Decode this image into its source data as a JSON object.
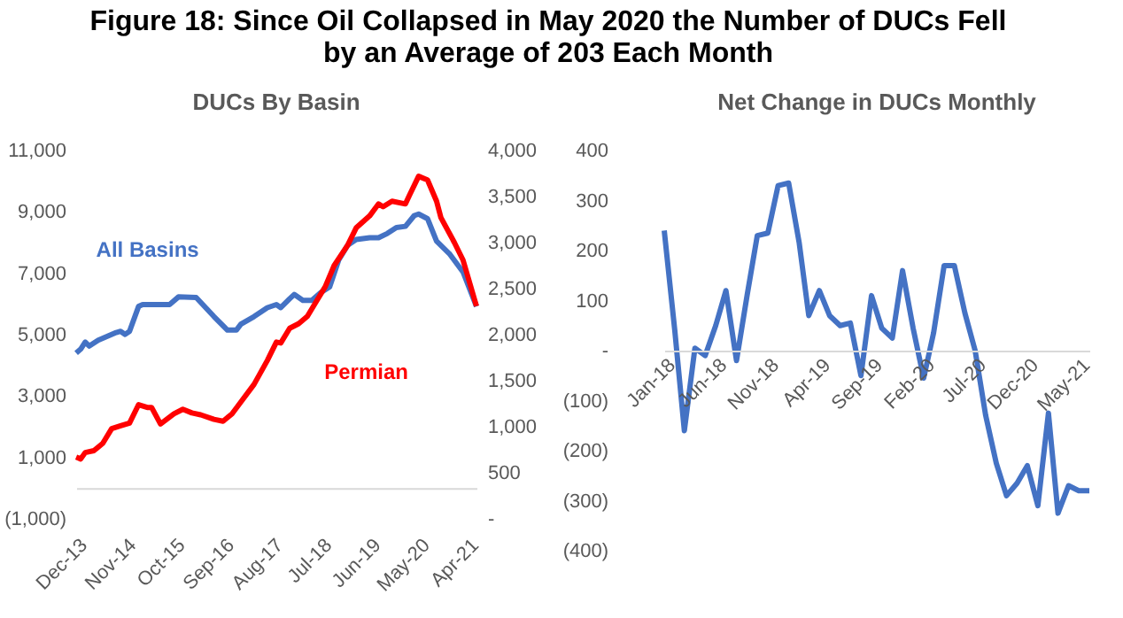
{
  "chart_data": [
    {
      "type": "line",
      "title": "Figure 18: Since Oil Collapsed in May 2020 the Number of DUCs Fell by an Average of 203 Each Month",
      "subtitle": "DUCs By Basin",
      "legend": false,
      "grid": false,
      "marker": "none",
      "line_style": "solid",
      "xlim": [
        "2013-12",
        "2021-06"
      ],
      "xticks": [
        {
          "value": "2013-12",
          "label": "Dec-13"
        },
        {
          "value": "2014-11",
          "label": "Nov-14"
        },
        {
          "value": "2015-10",
          "label": "Oct-15"
        },
        {
          "value": "2016-09",
          "label": "Sep-16"
        },
        {
          "value": "2017-08",
          "label": "Aug-17"
        },
        {
          "value": "2018-07",
          "label": "Jul-18"
        },
        {
          "value": "2019-06",
          "label": "Jun-19"
        },
        {
          "value": "2020-05",
          "label": "May-20"
        },
        {
          "value": "2021-04",
          "label": "Apr-21"
        }
      ],
      "ylim": [
        -1000,
        11000
      ],
      "yticks": [
        {
          "value": -1000,
          "label": "(1,000)"
        },
        {
          "value": 1000,
          "label": "1,000"
        },
        {
          "value": 3000,
          "label": "3,000"
        },
        {
          "value": 5000,
          "label": "5,000"
        },
        {
          "value": 7000,
          "label": "7,000"
        },
        {
          "value": 9000,
          "label": "9,000"
        },
        {
          "value": 11000,
          "label": "11,000"
        }
      ],
      "y2lim": [
        0,
        4000
      ],
      "y2ticks": [
        {
          "value": 0,
          "label": "-"
        },
        500,
        {
          "value": 1000,
          "label": "1,000"
        },
        {
          "value": 1500,
          "label": "1,500"
        },
        {
          "value": 2000,
          "label": "2,000"
        },
        {
          "value": 2500,
          "label": "2,500"
        },
        {
          "value": 3000,
          "label": "3,000"
        },
        {
          "value": 3500,
          "label": "3,500"
        },
        {
          "value": 4000,
          "label": "4,000"
        }
      ],
      "series": [
        {
          "name": "All Basins",
          "color": "#4472c4",
          "x": [
            "2013-12",
            "2014-01",
            "2014-02",
            "2014-03",
            "2014-05",
            "2014-09",
            "2014-10",
            "2014-11",
            "2014-12",
            "2015-02",
            "2015-03",
            "2015-09",
            "2015-11",
            "2016-03",
            "2016-07",
            "2016-10",
            "2016-12",
            "2017-01",
            "2017-04",
            "2017-07",
            "2017-09",
            "2017-10",
            "2017-12",
            "2018-01",
            "2018-03",
            "2018-05",
            "2018-07",
            "2018-09",
            "2018-11",
            "2019-01",
            "2019-03",
            "2019-06",
            "2019-08",
            "2019-10",
            "2019-12",
            "2020-02",
            "2020-04",
            "2020-05",
            "2020-07",
            "2020-09",
            "2020-12",
            "2021-03",
            "2021-06"
          ],
          "values": [
            4400,
            4530,
            4760,
            4630,
            4820,
            5070,
            5110,
            5010,
            5110,
            5920,
            5980,
            5980,
            6230,
            6210,
            5590,
            5150,
            5150,
            5340,
            5590,
            5880,
            5980,
            5880,
            6170,
            6310,
            6120,
            6120,
            6370,
            6560,
            7430,
            7910,
            8100,
            8160,
            8160,
            8300,
            8490,
            8530,
            8880,
            8930,
            8780,
            8050,
            7620,
            7040,
            5920
          ]
        },
        {
          "name": "Permian",
          "color": "#ff0000",
          "axis": "y2",
          "x": [
            "2013-12",
            "2014-01",
            "2014-02",
            "2014-04",
            "2014-06",
            "2014-08",
            "2014-10",
            "2014-12",
            "2015-02",
            "2015-04",
            "2015-05",
            "2015-07",
            "2015-10",
            "2015-12",
            "2016-02",
            "2016-04",
            "2016-07",
            "2016-09",
            "2016-11",
            "2017-01",
            "2017-04",
            "2017-07",
            "2017-09",
            "2017-10",
            "2017-12",
            "2018-02",
            "2018-04",
            "2018-06",
            "2018-08",
            "2018-10",
            "2019-01",
            "2019-03",
            "2019-06",
            "2019-08",
            "2019-09",
            "2019-11",
            "2020-02",
            "2020-03",
            "2020-05",
            "2020-07",
            "2020-09",
            "2020-10",
            "2021-01",
            "2021-03",
            "2021-06"
          ],
          "values": [
            670,
            650,
            720,
            740,
            820,
            980,
            1010,
            1040,
            1240,
            1210,
            1210,
            1030,
            1140,
            1190,
            1150,
            1130,
            1080,
            1060,
            1140,
            1270,
            1460,
            1720,
            1920,
            1910,
            2070,
            2120,
            2200,
            2360,
            2520,
            2750,
            2970,
            3160,
            3290,
            3420,
            3390,
            3450,
            3420,
            3520,
            3720,
            3680,
            3450,
            3270,
            3000,
            2810,
            2310
          ]
        }
      ]
    },
    {
      "type": "line",
      "title": "Net Change in DUCs Monthly",
      "legend": false,
      "grid": false,
      "marker": "none",
      "line_style": "solid",
      "xlim": [
        "2018-01",
        "2021-06"
      ],
      "xticks": [
        {
          "value": "2018-01",
          "label": "Jan-18"
        },
        {
          "value": "2018-06",
          "label": "Jun-18"
        },
        {
          "value": "2018-11",
          "label": "Nov-18"
        },
        {
          "value": "2019-04",
          "label": "Apr-19"
        },
        {
          "value": "2019-09",
          "label": "Sep-19"
        },
        {
          "value": "2020-02",
          "label": "Feb-20"
        },
        {
          "value": "2020-07",
          "label": "Jul-20"
        },
        {
          "value": "2020-12",
          "label": "Dec-20"
        },
        {
          "value": "2021-05",
          "label": "May-21"
        }
      ],
      "ylim": [
        -400,
        400
      ],
      "yticks": [
        {
          "value": -400,
          "label": "(400)"
        },
        {
          "value": -300,
          "label": "(300)"
        },
        {
          "value": -200,
          "label": "(200)"
        },
        {
          "value": -100,
          "label": "(100)"
        },
        {
          "value": 0,
          "label": "-"
        },
        100,
        200,
        300,
        400
      ],
      "series": [
        {
          "color": "#4472c4",
          "x": [
            "2018-01",
            "2018-02",
            "2018-03",
            "2018-04",
            "2018-05",
            "2018-06",
            "2018-07",
            "2018-08",
            "2018-09",
            "2018-10",
            "2018-11",
            "2018-12",
            "2019-01",
            "2019-02",
            "2019-03",
            "2019-04",
            "2019-05",
            "2019-06",
            "2019-07",
            "2019-08",
            "2019-09",
            "2019-10",
            "2019-11",
            "2019-12",
            "2020-01",
            "2020-02",
            "2020-03",
            "2020-04",
            "2020-05",
            "2020-06",
            "2020-07",
            "2020-08",
            "2020-09",
            "2020-10",
            "2020-11",
            "2020-12",
            "2021-01",
            "2021-02",
            "2021-03",
            "2021-04",
            "2021-05",
            "2021-06"
          ],
          "values": [
            240,
            40,
            -160,
            5,
            -10,
            50,
            120,
            -20,
            110,
            230,
            235,
            330,
            335,
            215,
            70,
            120,
            70,
            50,
            55,
            -50,
            110,
            45,
            25,
            160,
            45,
            -55,
            35,
            170,
            170,
            75,
            0,
            -130,
            -225,
            -290,
            -265,
            -230,
            -310,
            -125,
            -325,
            -270,
            -280,
            -280
          ]
        }
      ]
    }
  ]
}
